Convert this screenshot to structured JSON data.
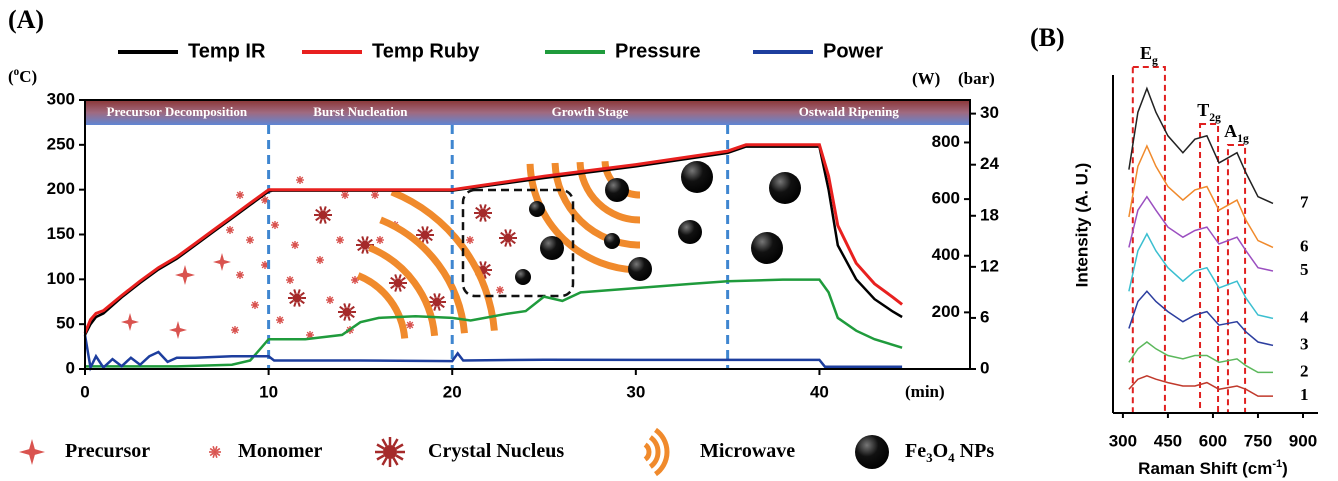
{
  "chart_data": [
    {
      "type": "line",
      "panel_label": "(A)",
      "x_label": "(min)",
      "y_label": [
        "(",
        "o",
        "C)"
      ],
      "y2_label": "(W)",
      "y3_label": "(bar)",
      "xlim": [
        0,
        48.2
      ],
      "xticks": [
        0,
        10,
        20,
        30,
        40
      ],
      "ylim": [
        0,
        300
      ],
      "yticks": [
        0,
        50,
        100,
        150,
        200,
        250,
        300
      ],
      "y2lim": [
        0,
        950
      ],
      "y2ticks": [
        200,
        400,
        600,
        800
      ],
      "y3lim": [
        0,
        31.6
      ],
      "y3ticks": [
        0,
        6,
        12,
        18,
        24,
        30
      ],
      "stages": [
        "Precursor Decomposition",
        "Burst  Nucleation",
        "Growth Stage",
        "Ostwald  Ripening"
      ],
      "stage_boundaries": [
        10,
        20,
        35
      ],
      "series": [
        {
          "name": "Temp IR",
          "color": "#000000",
          "x": [
            0,
            0.3,
            0.6,
            1,
            2,
            3,
            4,
            5,
            6,
            7,
            8,
            9,
            10,
            10.2,
            15,
            20,
            25,
            30,
            35,
            36,
            40,
            40.5,
            41,
            42,
            43,
            44,
            44.5
          ],
          "values": [
            38,
            50,
            58,
            62,
            80,
            96,
            111,
            123,
            138,
            153,
            168,
            183,
            198,
            199,
            199,
            199,
            213,
            226,
            241,
            248,
            248,
            200,
            138,
            100,
            78,
            64,
            58
          ]
        },
        {
          "name": "Temp Ruby",
          "color": "#e8201f",
          "x": [
            0,
            0.3,
            0.6,
            1,
            2,
            3,
            4,
            5,
            6,
            7,
            8,
            9,
            10,
            10.2,
            15,
            20,
            25,
            30,
            35,
            36,
            40,
            40.5,
            41,
            42,
            43,
            44,
            44.5
          ],
          "values": [
            40,
            55,
            62,
            65,
            82,
            98,
            113,
            125,
            140,
            155,
            170,
            185,
            200,
            200,
            200,
            200,
            215,
            228,
            243,
            250,
            250,
            215,
            160,
            118,
            95,
            80,
            72
          ]
        },
        {
          "name": "Pressure",
          "color": "#1f9b3c",
          "axis": "y3",
          "x": [
            0,
            5,
            8,
            9,
            10,
            10.5,
            12,
            14,
            15,
            16,
            18,
            20,
            21,
            22,
            23,
            24,
            25,
            26,
            27,
            30,
            33,
            35,
            38,
            40,
            40.5,
            41,
            42,
            43,
            44.5
          ],
          "values": [
            0.3,
            0.3,
            0.5,
            1,
            3.5,
            3.5,
            3.5,
            4,
            5.5,
            6,
            6.2,
            6,
            5.7,
            6.1,
            6.5,
            6.8,
            8.5,
            8,
            9,
            9.5,
            10,
            10.3,
            10.5,
            10.5,
            9,
            6,
            4.5,
            3.5,
            2.5
          ]
        },
        {
          "name": "Power",
          "color": "#1d3e9e",
          "axis": "y2",
          "x": [
            0,
            0.3,
            0.6,
            1,
            1.5,
            2,
            2.5,
            3,
            3.5,
            4,
            4.5,
            5,
            6,
            8,
            10,
            10.3,
            15,
            20,
            20.3,
            20.6,
            25,
            30,
            35,
            40,
            40.3,
            44.5
          ],
          "values": [
            120,
            5,
            45,
            5,
            35,
            10,
            40,
            15,
            45,
            60,
            25,
            40,
            40,
            45,
            45,
            30,
            30,
            28,
            55,
            30,
            33,
            32,
            32,
            32,
            8,
            8
          ]
        }
      ],
      "icon_legend": [
        [
          "Precursor"
        ],
        [
          "Monomer"
        ],
        [
          "Crystal Nucleus"
        ],
        [
          "Microwave"
        ],
        [
          "Fe",
          "3",
          "O",
          "4",
          " NPs"
        ]
      ]
    },
    {
      "type": "line",
      "panel_label": "(B)",
      "x_label": [
        "Raman Shift (cm",
        "-1",
        ")"
      ],
      "y_label": "Intensity (A. U.)",
      "xlim": [
        267,
        950
      ],
      "xticks": [
        300,
        450,
        600,
        750,
        900
      ],
      "ylim": [
        0,
        100
      ],
      "x": [
        320,
        350,
        380,
        410,
        450,
        500,
        540,
        580,
        620,
        680,
        710,
        750,
        800
      ],
      "series": [
        {
          "name": "1",
          "color": "#c0392b",
          "values": [
            7,
            10,
            11,
            10,
            9,
            8,
            8,
            9,
            7,
            8,
            7,
            5,
            5
          ]
        },
        {
          "name": "2",
          "color": "#5cb85c",
          "values": [
            15,
            19,
            21,
            19,
            17,
            16,
            17,
            17,
            15,
            16,
            14,
            12,
            12
          ]
        },
        {
          "name": "3",
          "color": "#2c3e9f",
          "values": [
            25,
            33,
            36,
            33,
            30,
            27,
            29,
            30,
            26,
            27,
            24,
            21,
            20
          ]
        },
        {
          "name": "4",
          "color": "#3bbfd0",
          "values": [
            36,
            48,
            53,
            48,
            43,
            39,
            42,
            43,
            37,
            39,
            34,
            29,
            28
          ]
        },
        {
          "name": "5",
          "color": "#9b4fc0",
          "values": [
            49,
            60,
            64,
            60,
            55,
            52,
            54,
            55,
            50,
            52,
            48,
            43,
            42
          ]
        },
        {
          "name": "6",
          "color": "#f08a2c",
          "values": [
            58,
            73,
            79,
            73,
            67,
            63,
            66,
            67,
            60,
            63,
            57,
            51,
            49
          ]
        },
        {
          "name": "7",
          "color": "#222222",
          "values": [
            72,
            89,
            96,
            89,
            82,
            77,
            81,
            82,
            74,
            77,
            71,
            64,
            62
          ]
        }
      ],
      "peak_regions": [
        {
          "label": [
            "E",
            "g"
          ],
          "range": [
            333,
            440
          ]
        },
        {
          "label": [
            "T",
            "2g"
          ],
          "range": [
            557,
            617
          ]
        },
        {
          "label": [
            "A",
            "1g"
          ],
          "range": [
            650,
            707
          ]
        }
      ]
    }
  ]
}
